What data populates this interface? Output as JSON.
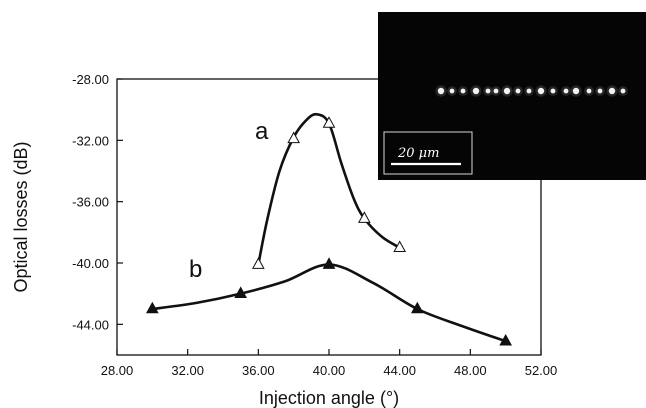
{
  "chart_data": {
    "type": "line",
    "xlabel": "Injection angle (°)",
    "ylabel": "Optical losses (dB)",
    "xlim": [
      28,
      52
    ],
    "ylim": [
      -46,
      -28
    ],
    "x_ticks": [
      "28.00",
      "32.00",
      "36.00",
      "40.00",
      "44.00",
      "48.00",
      "52.00"
    ],
    "y_ticks": [
      "-28.00",
      "-32.00",
      "-36.00",
      "-40.00",
      "-44.00"
    ],
    "x_tick_values": [
      28,
      32,
      36,
      40,
      44,
      48,
      52
    ],
    "y_tick_values": [
      -28,
      -32,
      -36,
      -40,
      -44
    ],
    "grid": false,
    "series": [
      {
        "name": "a",
        "marker": "open-triangle",
        "color": "#111111",
        "points": [
          {
            "x": 36,
            "y": -40.1
          },
          {
            "x": 38,
            "y": -31.9
          },
          {
            "x": 40,
            "y": -30.9
          },
          {
            "x": 42,
            "y": -37.1
          },
          {
            "x": 44,
            "y": -39.0
          }
        ],
        "smooth_curve": [
          [
            36,
            -40.1
          ],
          [
            36.5,
            -37.2
          ],
          [
            37.2,
            -34.0
          ],
          [
            38,
            -31.8
          ],
          [
            38.7,
            -30.7
          ],
          [
            39.3,
            -30.3
          ],
          [
            40,
            -30.9
          ],
          [
            40.7,
            -33.5
          ],
          [
            41.4,
            -35.8
          ],
          [
            42,
            -37.1
          ],
          [
            43,
            -38.3
          ],
          [
            44,
            -39.0
          ]
        ]
      },
      {
        "name": "b",
        "marker": "filled-triangle",
        "color": "#111111",
        "points": [
          {
            "x": 30,
            "y": -43.0
          },
          {
            "x": 35,
            "y": -42.0
          },
          {
            "x": 40,
            "y": -40.1
          },
          {
            "x": 45,
            "y": -43.0
          },
          {
            "x": 50,
            "y": -45.1
          }
        ],
        "smooth_curve": [
          [
            30,
            -43.0
          ],
          [
            32.5,
            -42.6
          ],
          [
            35,
            -42.0
          ],
          [
            37.5,
            -41.2
          ],
          [
            40,
            -40.1
          ],
          [
            42.5,
            -41.3
          ],
          [
            45,
            -43.0
          ],
          [
            47.5,
            -44.1
          ],
          [
            50,
            -45.1
          ]
        ]
      }
    ],
    "inset": {
      "scale_bar_label": "20 μm",
      "background_color": "#050505"
    }
  }
}
